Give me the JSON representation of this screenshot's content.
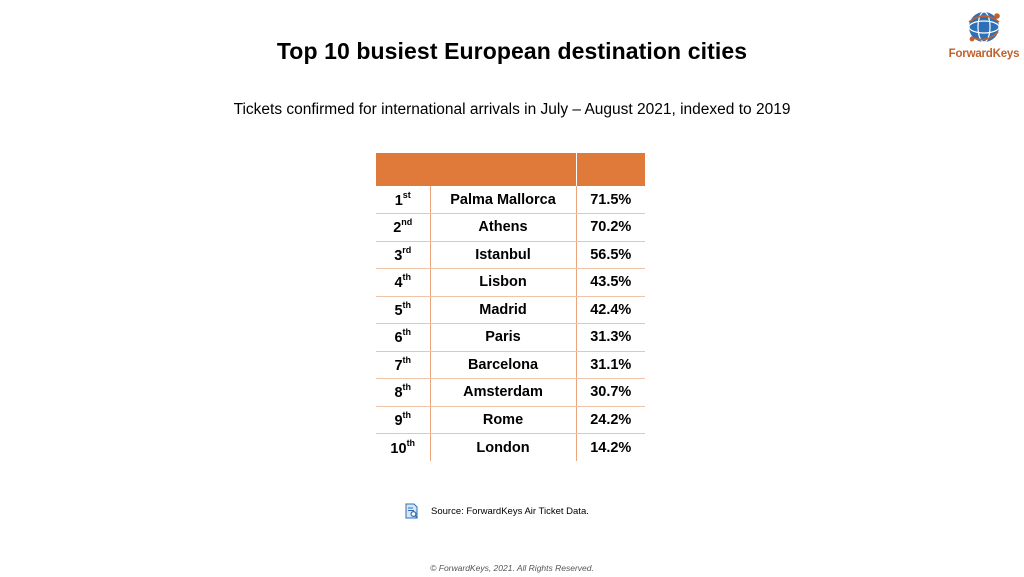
{
  "chart_data": {
    "type": "table",
    "title": "Top 10 busiest European destination cities",
    "subtitle": "Tickets confirmed for international arrivals in July – August 2021, indexed to 2019",
    "rows": [
      {
        "rank": "1",
        "suffix": "st",
        "city": "Palma Mallorca",
        "value": "71.5%"
      },
      {
        "rank": "2",
        "suffix": "nd",
        "city": "Athens",
        "value": "70.2%"
      },
      {
        "rank": "3",
        "suffix": "rd",
        "city": "Istanbul",
        "value": "56.5%"
      },
      {
        "rank": "4",
        "suffix": "th",
        "city": "Lisbon",
        "value": "43.5%"
      },
      {
        "rank": "5",
        "suffix": "th",
        "city": "Madrid",
        "value": "42.4%"
      },
      {
        "rank": "6",
        "suffix": "th",
        "city": "Paris",
        "value": "31.3%"
      },
      {
        "rank": "7",
        "suffix": "th",
        "city": "Barcelona",
        "value": "31.1%"
      },
      {
        "rank": "8",
        "suffix": "th",
        "city": "Amsterdam",
        "value": "30.7%"
      },
      {
        "rank": "9",
        "suffix": "th",
        "city": "Rome",
        "value": "24.2%"
      },
      {
        "rank": "10",
        "suffix": "th",
        "city": "London",
        "value": "14.2%"
      }
    ],
    "header_color": "#e07a3a"
  },
  "logo": {
    "text": "ForwardKeys",
    "icon": "globe-icon"
  },
  "source": {
    "text": "Source: ForwardKeys Air Ticket Data.",
    "icon": "document-search-icon"
  },
  "footer": {
    "copyright": "© ForwardKeys, 2021. All Rights Reserved."
  }
}
